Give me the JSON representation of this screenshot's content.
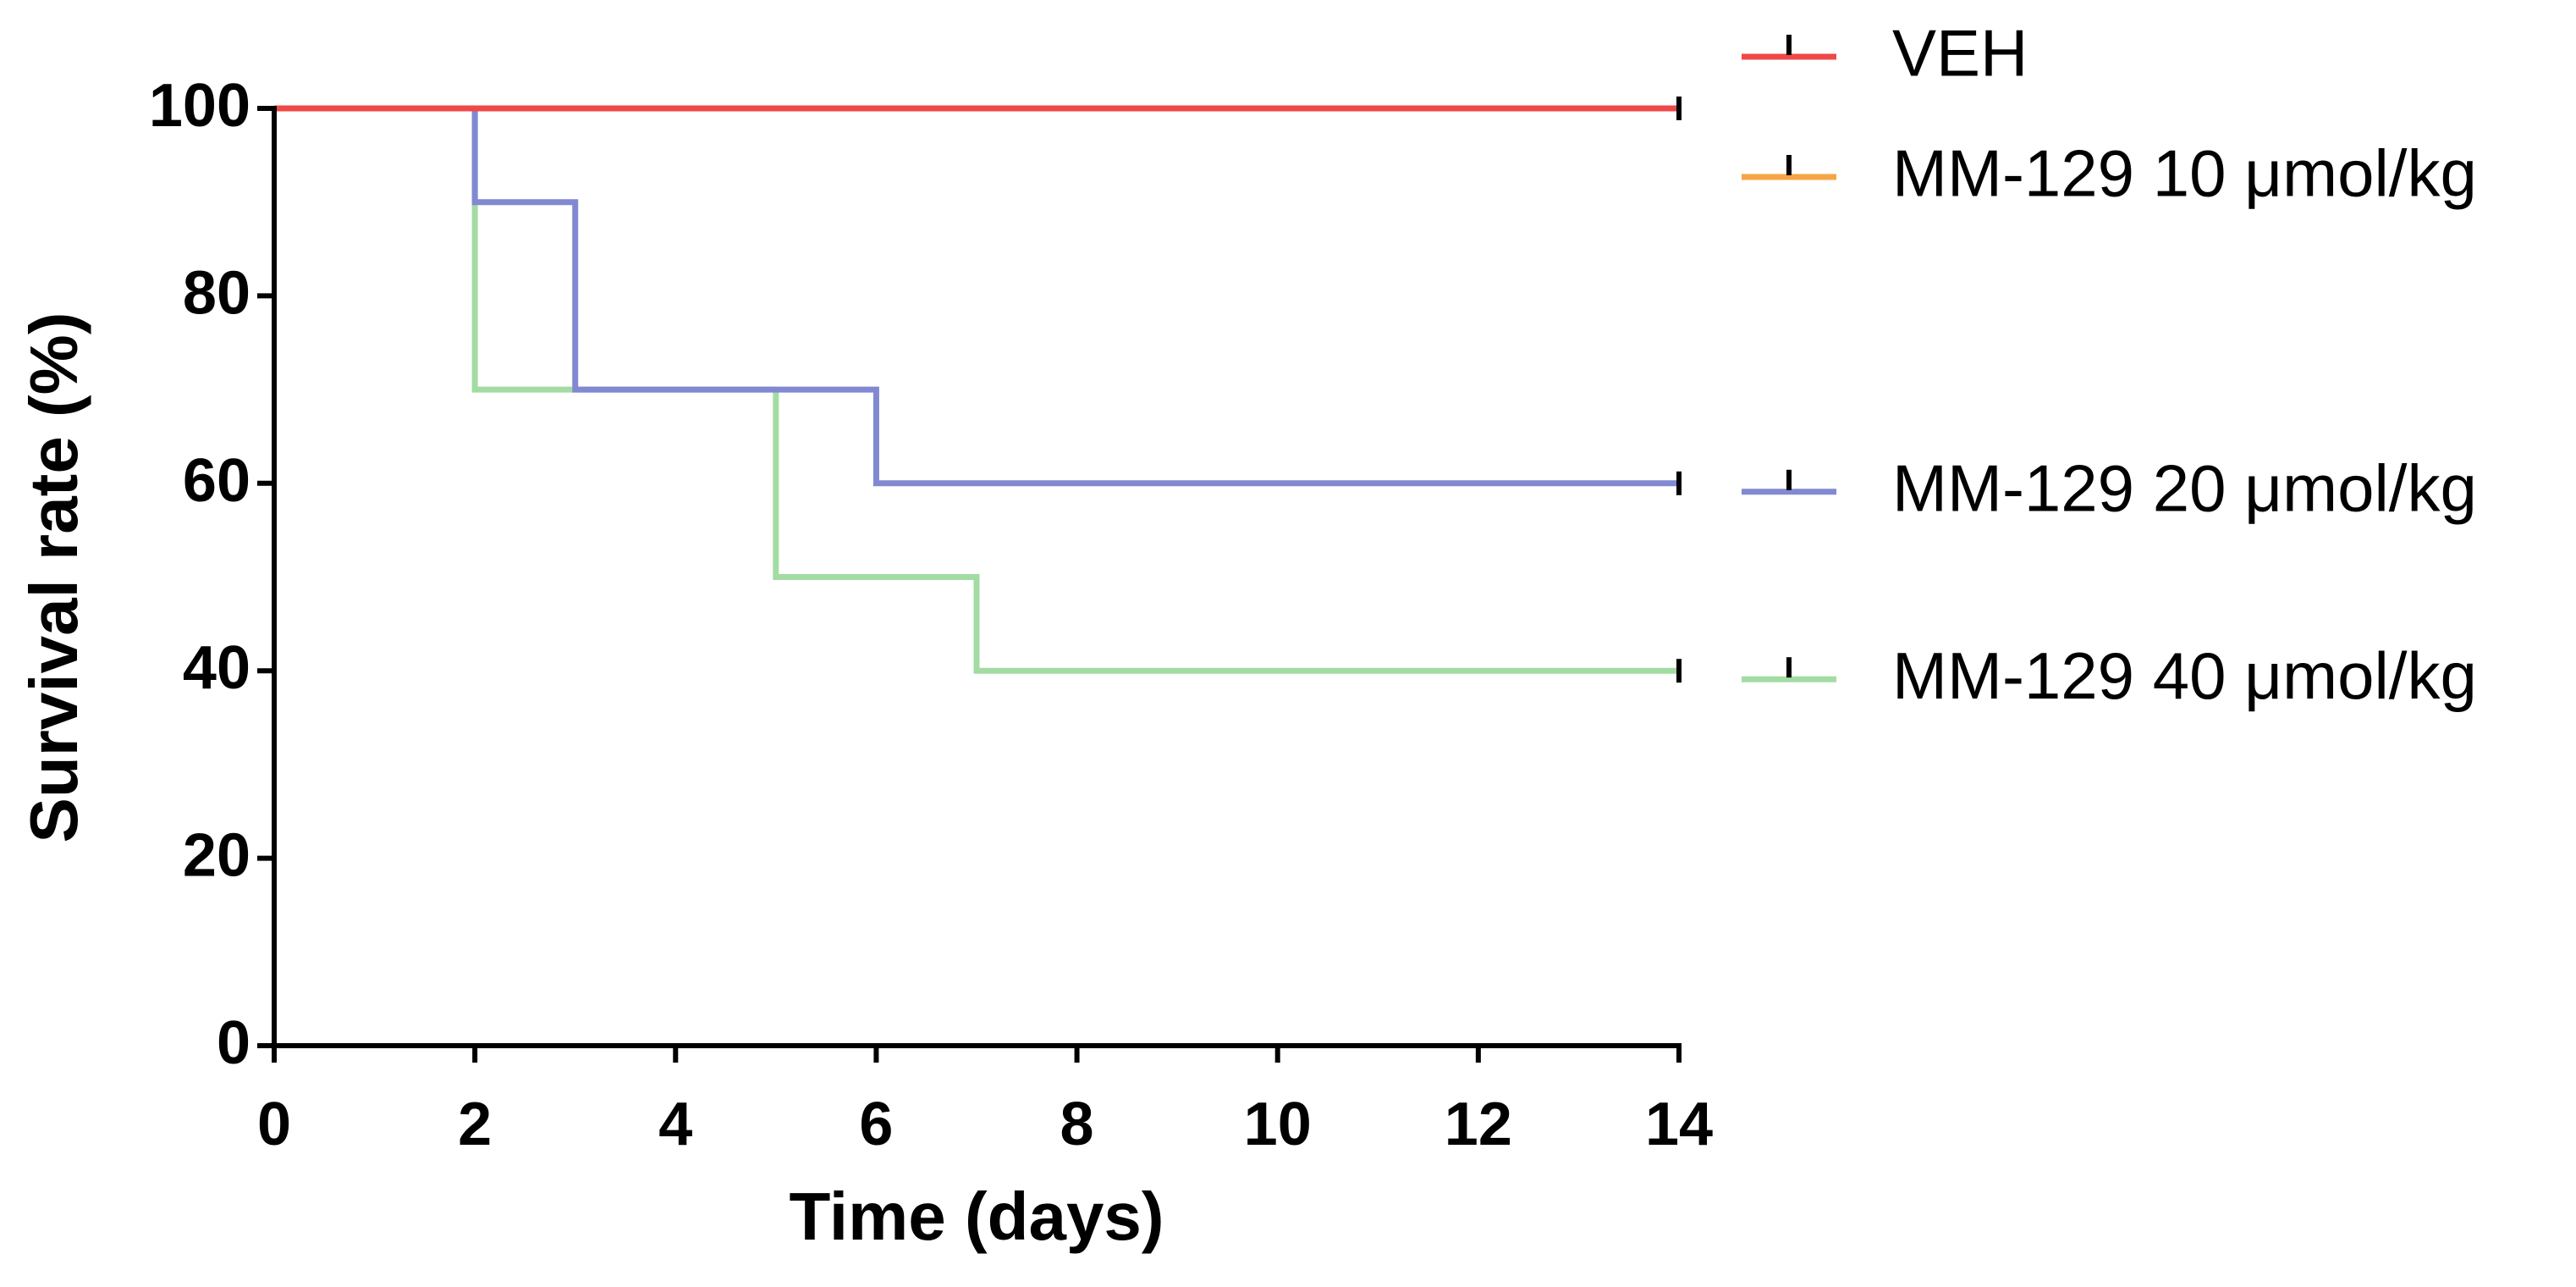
{
  "chart_data": {
    "type": "line",
    "drawstyle": "steps-post",
    "xlabel": "Time (days)",
    "ylabel": "Survival rate (%)",
    "x": [
      0,
      2,
      3,
      5,
      6,
      7,
      14
    ],
    "series": [
      {
        "name": "VEH",
        "color": "#f04848",
        "values": [
          100,
          100,
          100,
          100,
          100,
          100,
          100
        ]
      },
      {
        "name": "MM-129 10 μmol/kg",
        "color": "#f5a545",
        "values": [
          100,
          100,
          100,
          100,
          100,
          100,
          100
        ]
      },
      {
        "name": "MM-129 20 μmol/kg",
        "color": "#8289d2",
        "values": [
          100,
          90,
          70,
          70,
          60,
          60,
          60
        ]
      },
      {
        "name": "MM-129 40 μmol/kg",
        "color": "#a3dca3",
        "values": [
          100,
          70,
          70,
          50,
          50,
          40,
          40
        ]
      }
    ],
    "xlim": [
      0,
      14
    ],
    "xticks": [
      0,
      2,
      4,
      6,
      8,
      10,
      12,
      14
    ],
    "ylim": [
      0,
      100
    ],
    "yticks": [
      0,
      20,
      40,
      60,
      80,
      100
    ],
    "legend": "right"
  }
}
